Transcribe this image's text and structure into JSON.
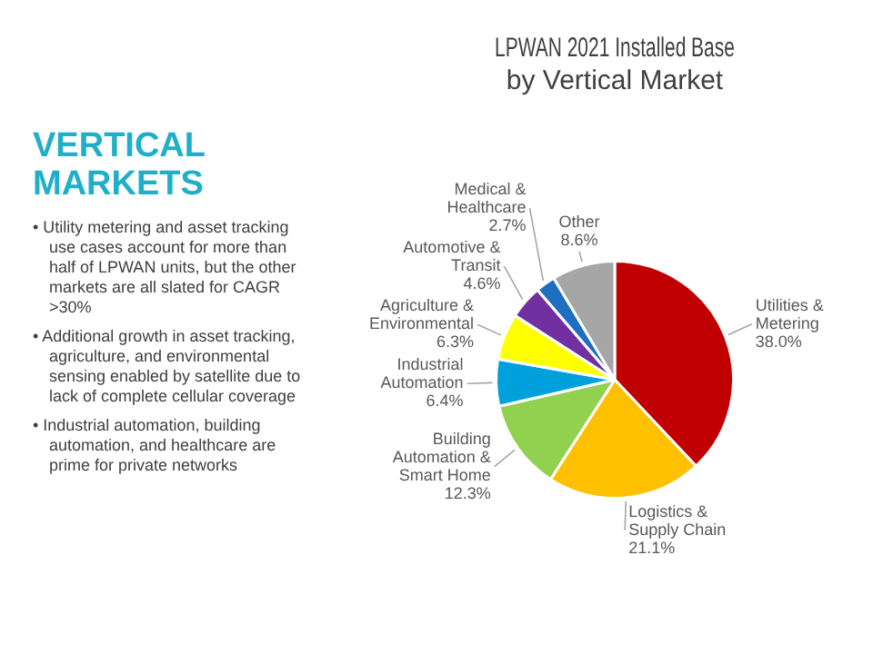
{
  "chart_data": {
    "type": "pie",
    "title": "LPWAN 2021 Installed Base by Vertical Market",
    "categories": [
      "Utilities & Metering",
      "Logistics & Supply Chain",
      "Building Automation & Smart Home",
      "Industrial Automation",
      "Agriculture & Environmental",
      "Automotive & Transit",
      "Medical & Healthcare",
      "Other"
    ],
    "values": [
      38.0,
      21.1,
      12.3,
      6.4,
      6.3,
      4.6,
      2.7,
      8.6
    ],
    "value_labels": [
      "38.0%",
      "21.1%",
      "12.3%",
      "6.4%",
      "6.3%",
      "4.6%",
      "2.7%",
      "8.6%"
    ],
    "colors": [
      "#c00000",
      "#ffc000",
      "#92d050",
      "#00a0dc",
      "#ffff00",
      "#7030a0",
      "#1f6fc0",
      "#a6a6a6"
    ],
    "annotations": [
      "VERTICAL MARKETS",
      "• Utility metering and asset tracking use cases account for more than half of LPWAN units, but the other markets are all slated for CAGR >30%",
      "• Additional growth in asset tracking, agriculture, and environmental sensing enabled by satellite due to lack of complete cellular coverage",
      "• Industrial automation, building automation, and healthcare are prime for private networks"
    ]
  }
}
